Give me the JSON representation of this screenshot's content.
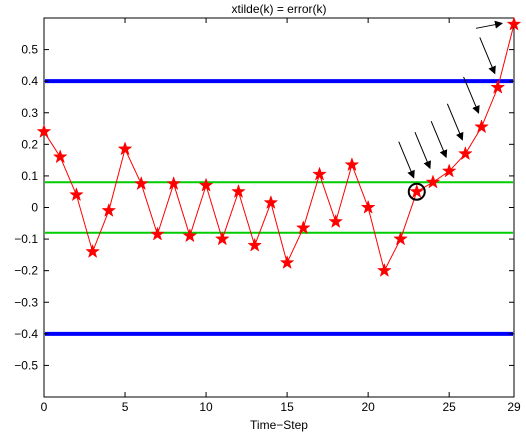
{
  "chart_data": {
    "type": "line",
    "title": "xtilde(k) = error(k)",
    "xlabel": "Time−Step",
    "ylabel": "",
    "xlim": [
      0,
      29
    ],
    "ylim": [
      -0.6,
      0.6
    ],
    "x_ticks": [
      0,
      5,
      10,
      15,
      20,
      25,
      29
    ],
    "x_tick_labels": [
      "0",
      "5",
      "10",
      "15",
      "20",
      "25",
      "29"
    ],
    "y_ticks": [
      -0.5,
      -0.4,
      -0.3,
      -0.2,
      -0.1,
      0,
      0.1,
      0.2,
      0.3,
      0.4,
      0.5
    ],
    "y_tick_labels": [
      "−0.5",
      "−0.4",
      "−0.3",
      "−0.2",
      "−0.1",
      "0",
      "0.1",
      "0.2",
      "0.3",
      "0.4",
      "0.5"
    ],
    "grid": false,
    "series": [
      {
        "color": "#ff0000",
        "marker": "star",
        "x": [
          0,
          1,
          2,
          3,
          4,
          5,
          6,
          7,
          8,
          9,
          10,
          11,
          12,
          13,
          14,
          15,
          16,
          17,
          18,
          19,
          20,
          21,
          22,
          23,
          24,
          25,
          26,
          27,
          28,
          29
        ],
        "values": [
          0.24,
          0.16,
          0.04,
          -0.14,
          -0.01,
          0.185,
          0.075,
          -0.085,
          0.075,
          -0.09,
          0.07,
          -0.1,
          0.05,
          -0.12,
          0.015,
          -0.175,
          -0.065,
          0.105,
          -0.045,
          0.135,
          0.0,
          -0.2,
          -0.1,
          0.05,
          0.08,
          0.115,
          0.17,
          0.255,
          0.38,
          0.58
        ]
      }
    ],
    "reference_lines": [
      {
        "kind": "outer-bound",
        "y": 0.4,
        "color": "#0000ff"
      },
      {
        "kind": "outer-bound",
        "y": -0.4,
        "color": "#0000ff"
      },
      {
        "kind": "inner-bound",
        "y": 0.08,
        "color": "#00cc00"
      },
      {
        "kind": "inner-bound",
        "y": -0.08,
        "color": "#00cc00"
      }
    ],
    "highlight_circle": {
      "x": 23,
      "y": 0.05,
      "color": "#000000"
    },
    "arrows_point_to": [
      {
        "x": 23,
        "y": 0.05
      },
      {
        "x": 24,
        "y": 0.08
      },
      {
        "x": 25,
        "y": 0.115
      },
      {
        "x": 26,
        "y": 0.17
      },
      {
        "x": 27,
        "y": 0.255
      },
      {
        "x": 28,
        "y": 0.38
      },
      {
        "x": 29,
        "y": 0.58
      }
    ]
  }
}
